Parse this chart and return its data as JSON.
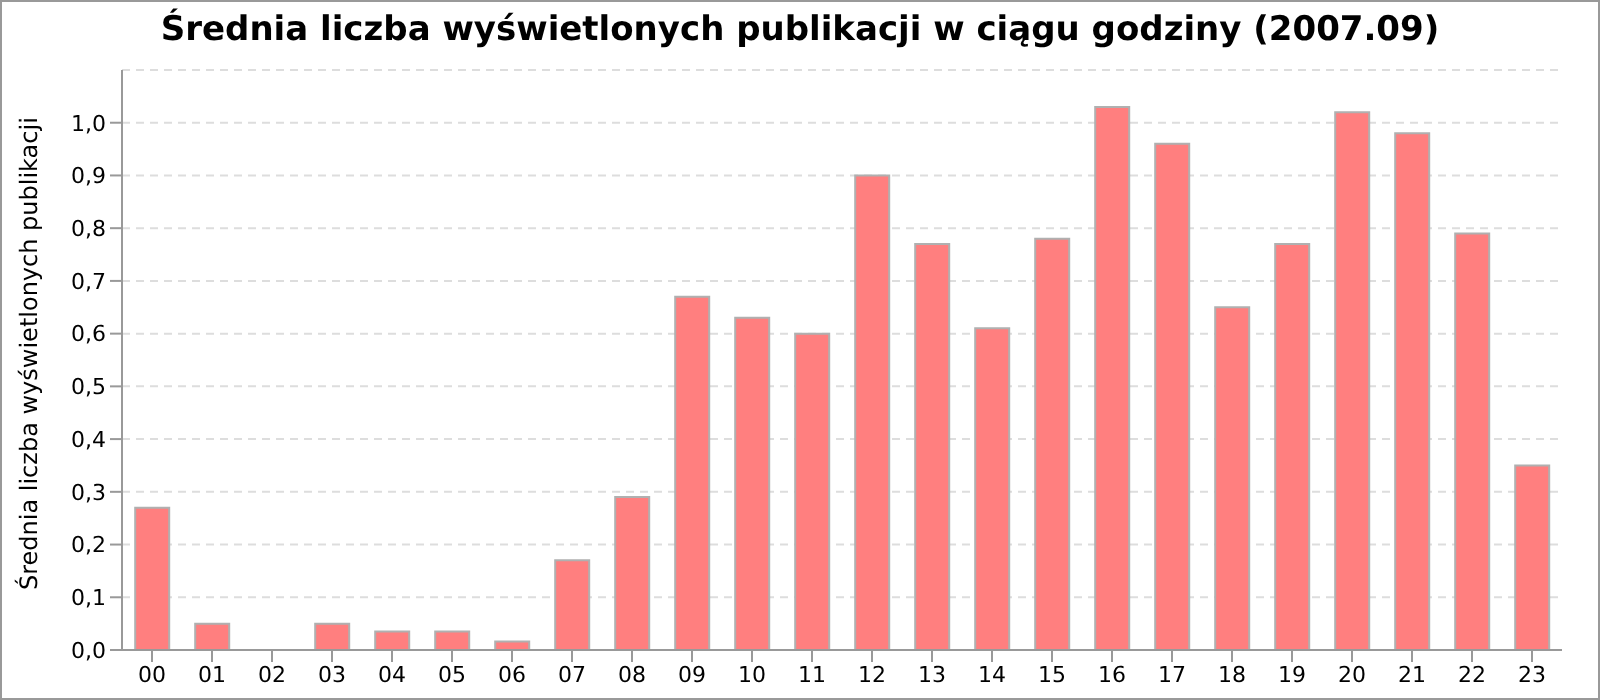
{
  "chart_data": {
    "type": "bar",
    "title": "Średnia liczba wyświetlonych publikacji w ciągu godziny (2007.09)",
    "ylabel": "Średnia liczba wyświetlonych publikacji",
    "categories": [
      "00",
      "01",
      "02",
      "03",
      "04",
      "05",
      "06",
      "07",
      "08",
      "09",
      "10",
      "11",
      "12",
      "13",
      "14",
      "15",
      "16",
      "17",
      "18",
      "19",
      "20",
      "21",
      "22",
      "23"
    ],
    "values": [
      0.27,
      0.05,
      0,
      0.05,
      0.035,
      0.035,
      0.016,
      0.17,
      0.29,
      0.67,
      0.63,
      0.6,
      0.9,
      0.77,
      0.61,
      0.78,
      1.03,
      0.96,
      0.65,
      0.77,
      1.02,
      0.98,
      0.79,
      0.35
    ],
    "color": "#ff7f7f",
    "ylim": [
      0,
      1.1
    ],
    "yticks": [
      {
        "value": 0,
        "label": "0,0"
      },
      {
        "value": 0.1,
        "label": "0,1"
      },
      {
        "value": 0.2,
        "label": "0,2"
      },
      {
        "value": 0.3,
        "label": "0,3"
      },
      {
        "value": 0.4,
        "label": "0,4"
      },
      {
        "value": 0.5,
        "label": "0,5"
      },
      {
        "value": 0.6,
        "label": "0,6"
      },
      {
        "value": 0.7,
        "label": "0,7"
      },
      {
        "value": 0.8,
        "label": "0,8"
      },
      {
        "value": 0.9,
        "label": "0,9"
      },
      {
        "value": 1,
        "label": "1,0"
      }
    ],
    "grid": "y"
  }
}
